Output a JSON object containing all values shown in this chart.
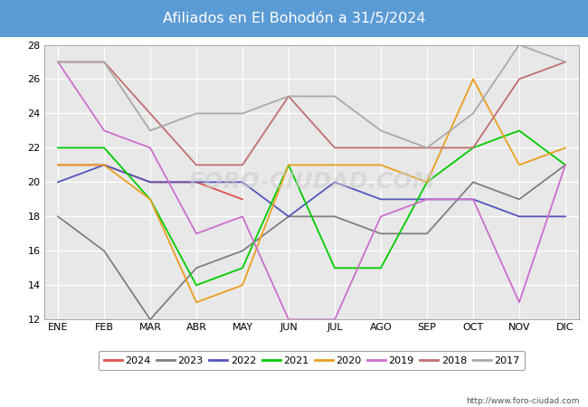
{
  "title": "Afiliados en El Bohodón a 31/5/2024",
  "title_bg_color": "#5b9bd5",
  "title_text_color": "white",
  "ylim": [
    12,
    28
  ],
  "yticks": [
    12,
    14,
    16,
    18,
    20,
    22,
    24,
    26,
    28
  ],
  "months": [
    "ENE",
    "FEB",
    "MAR",
    "ABR",
    "MAY",
    "JUN",
    "JUL",
    "AGO",
    "SEP",
    "OCT",
    "NOV",
    "DIC"
  ],
  "watermark": "FORO-CIUDAD.COM",
  "url": "http://www.foro-ciudad.com",
  "series": [
    {
      "year": "2024",
      "color": "#e05050",
      "data": [
        21,
        21,
        20,
        20,
        19,
        null,
        null,
        null,
        null,
        null,
        null,
        null
      ]
    },
    {
      "year": "2023",
      "color": "#808080",
      "data": [
        18,
        16,
        12,
        15,
        16,
        18,
        18,
        17,
        17,
        20,
        19,
        21
      ]
    },
    {
      "year": "2022",
      "color": "#5555bb",
      "data": [
        20,
        21,
        20,
        20,
        20,
        18,
        20,
        19,
        19,
        19,
        18,
        18
      ]
    },
    {
      "year": "2021",
      "color": "#00cc00",
      "data": [
        22,
        22,
        19,
        14,
        15,
        21,
        15,
        15,
        20,
        22,
        23,
        21
      ]
    },
    {
      "year": "2020",
      "color": "#e8a020",
      "data": [
        21,
        21,
        19,
        13,
        14,
        21,
        21,
        21,
        20,
        26,
        21,
        22
      ]
    },
    {
      "year": "2019",
      "color": "#cc70cc",
      "data": [
        27,
        23,
        22,
        17,
        18,
        12,
        12,
        18,
        19,
        19,
        13,
        21
      ]
    },
    {
      "year": "2018",
      "color": "#c07070",
      "data": [
        27,
        27,
        24,
        21,
        21,
        25,
        22,
        22,
        22,
        22,
        26,
        27
      ]
    },
    {
      "year": "2017",
      "color": "#aaaaaa",
      "data": [
        27,
        27,
        23,
        24,
        24,
        25,
        25,
        23,
        22,
        24,
        28,
        27
      ]
    }
  ]
}
